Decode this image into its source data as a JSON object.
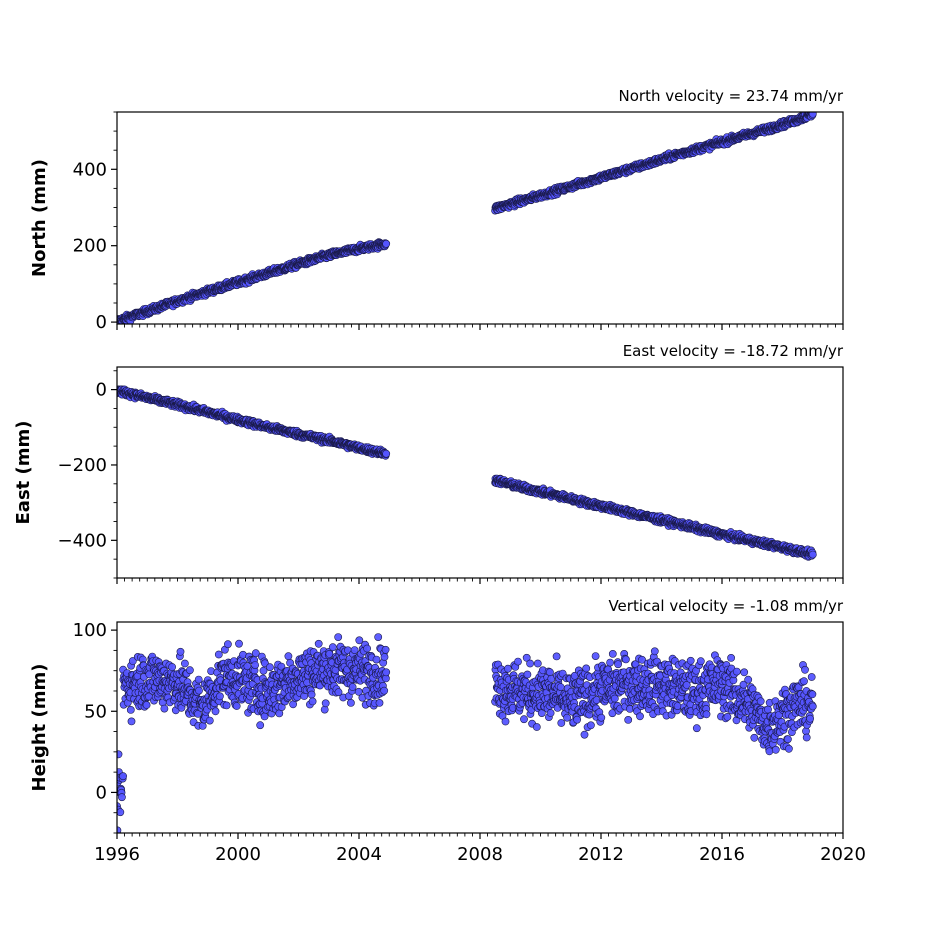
{
  "chart_data": [
    {
      "type": "scatter",
      "title": "North velocity = 23.74 mm/yr",
      "ylabel": "North (mm)",
      "xlim": [
        1996,
        2020
      ],
      "ylim": [
        -5,
        550
      ],
      "yticks": [
        0,
        200,
        400
      ],
      "series": [
        {
          "segments": [
            {
              "x": [
                1996.0,
                1997.0,
                1998.0,
                1999.0,
                2000.0,
                2001.0,
                2002.0,
                2003.0,
                2004.0,
                2004.9
              ],
              "y": [
                2,
                28,
                55,
                80,
                104,
                128,
                152,
                175,
                192,
                205
              ]
            },
            {
              "x": [
                2008.5,
                2009.5,
                2010.5,
                2011.5,
                2012.5,
                2013.5,
                2014.5,
                2015.5,
                2016.5,
                2017.5,
                2018.5,
                2019.0
              ],
              "y": [
                297,
                320,
                343,
                367,
                390,
                413,
                438,
                460,
                483,
                505,
                530,
                545
              ]
            }
          ],
          "noise": 4
        }
      ]
    },
    {
      "type": "scatter",
      "title": "East velocity = -18.72 mm/yr",
      "ylabel": "East (mm)",
      "xlim": [
        1996,
        2020
      ],
      "ylim": [
        -500,
        60
      ],
      "yticks": [
        -400,
        -200,
        0
      ],
      "series": [
        {
          "segments": [
            {
              "x": [
                1996.0,
                1997.0,
                1998.0,
                1999.0,
                2000.0,
                2001.0,
                2002.0,
                2003.0,
                2004.0,
                2004.9
              ],
              "y": [
                -2,
                -22,
                -40,
                -60,
                -80,
                -100,
                -118,
                -135,
                -155,
                -170
              ]
            },
            {
              "x": [
                2008.5,
                2009.5,
                2010.5,
                2011.5,
                2012.5,
                2013.5,
                2014.5,
                2015.5,
                2016.5,
                2017.5,
                2018.5,
                2019.0
              ],
              "y": [
                -240,
                -262,
                -280,
                -300,
                -318,
                -337,
                -355,
                -375,
                -393,
                -410,
                -428,
                -438
              ]
            }
          ],
          "noise": 4
        }
      ]
    },
    {
      "type": "scatter",
      "title": "Vertical velocity = -1.08 mm/yr",
      "ylabel": "Height (mm)",
      "xlim": [
        1996,
        2020
      ],
      "ylim": [
        -25,
        105
      ],
      "yticks": [
        0,
        50,
        100
      ],
      "xticks": [
        1996,
        2000,
        2004,
        2008,
        2012,
        2016,
        2020
      ],
      "series": [
        {
          "segments": [
            {
              "x": [
                1996.0,
                1996.05,
                1996.1,
                1996.15,
                1996.2
              ],
              "y": [
                -10,
                0,
                5,
                -5,
                10
              ]
            },
            {
              "x": [
                1996.2,
                1997.0,
                1998.0,
                1998.8,
                1999.5,
                2000.0,
                2001.0,
                2002.0,
                2003.0,
                2004.0,
                2004.9
              ],
              "y": [
                66,
                70,
                68,
                52,
                72,
                70,
                62,
                72,
                76,
                75,
                74
              ]
            },
            {
              "x": [
                2008.5,
                2009.5,
                2010.5,
                2011.0,
                2012.0,
                2013.0,
                2014.0,
                2015.0,
                2016.0,
                2017.0,
                2017.5,
                2018.5,
                2019.0
              ],
              "y": [
                66,
                62,
                60,
                55,
                63,
                67,
                66,
                62,
                67,
                52,
                40,
                55,
                53
              ]
            }
          ],
          "noise": 9
        }
      ]
    }
  ]
}
